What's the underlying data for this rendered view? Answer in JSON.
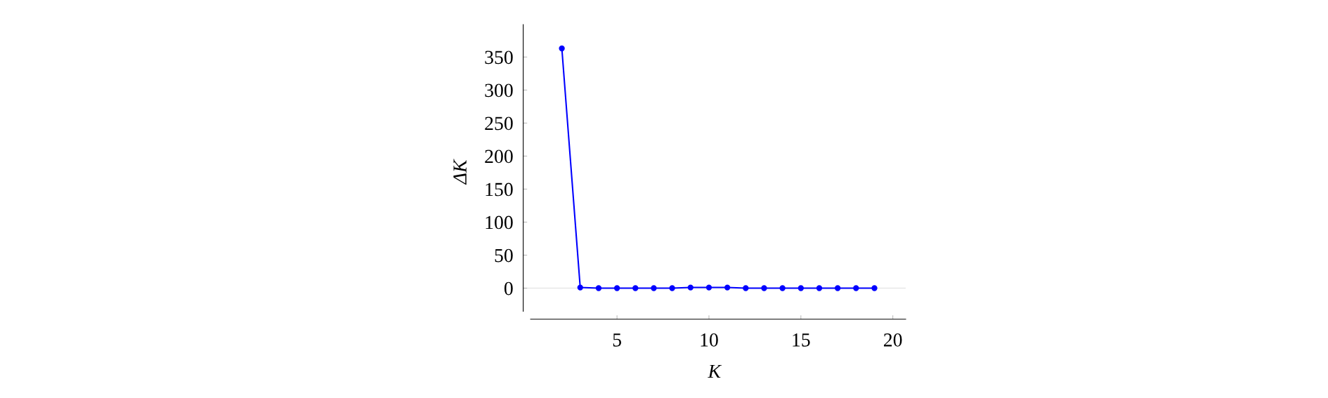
{
  "chart_data": {
    "type": "line",
    "xlabel": "K",
    "ylabel": "ΔK",
    "x": [
      2,
      3,
      4,
      5,
      6,
      7,
      8,
      9,
      10,
      11,
      12,
      13,
      14,
      15,
      16,
      17,
      18,
      19
    ],
    "series": [
      {
        "color": "#0000ff",
        "values": [
          363,
          1,
          0,
          0,
          0,
          0,
          0,
          1,
          1,
          1,
          0,
          0,
          0,
          0,
          0,
          0,
          0,
          0
        ]
      }
    ],
    "xlim": [
      -0.1,
      20.7
    ],
    "ylim": [
      -47,
      399
    ],
    "xticks": [
      5,
      10,
      15,
      20
    ],
    "yticks": [
      0,
      50,
      100,
      150,
      200,
      250,
      300,
      350
    ],
    "ref_lines": [
      {
        "axis": "y",
        "value": 0,
        "color": "#e6e6e6"
      }
    ],
    "marker": "circle",
    "line_style": "solid",
    "grid": false,
    "legend": false
  }
}
